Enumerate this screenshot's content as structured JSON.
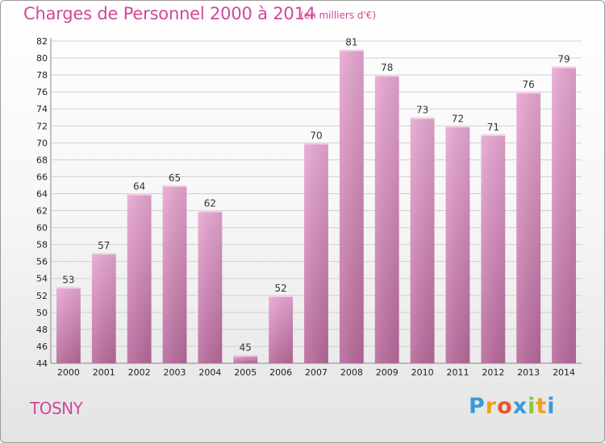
{
  "header": {
    "title": "Charges de Personnel 2000 à 2014",
    "subtitle": "(en milliers d'€)"
  },
  "footer": {
    "place": "TOSNY",
    "logo_letters": [
      "P",
      "r",
      "o",
      "x",
      "i",
      "t",
      "i"
    ],
    "logo_colors": [
      "#3a9ad9",
      "#f0a020",
      "#e8562a",
      "#3a9ad9",
      "#8cc63f",
      "#f0a020",
      "#3a9ad9"
    ]
  },
  "colors": {
    "bar_top": "#e8a8d2",
    "bar_bottom": "#b86a9c",
    "grid": "#cfcfcf",
    "accent": "#d0479a"
  },
  "chart_data": {
    "type": "bar",
    "categories": [
      "2000",
      "2001",
      "2002",
      "2003",
      "2004",
      "2005",
      "2006",
      "2007",
      "2008",
      "2009",
      "2010",
      "2011",
      "2012",
      "2013",
      "2014"
    ],
    "values": [
      53,
      57,
      64,
      65,
      62,
      45,
      52,
      70,
      81,
      78,
      73,
      72,
      71,
      76,
      79
    ],
    "title": "Charges de Personnel 2000 à 2014",
    "subtitle": "(en milliers d'€)",
    "xlabel": "",
    "ylabel": "",
    "ylim": [
      44,
      82
    ],
    "yticks": [
      44,
      46,
      48,
      50,
      52,
      54,
      56,
      58,
      60,
      62,
      64,
      66,
      68,
      70,
      72,
      74,
      76,
      78,
      80,
      82
    ],
    "grid": true,
    "data_labels": true
  }
}
